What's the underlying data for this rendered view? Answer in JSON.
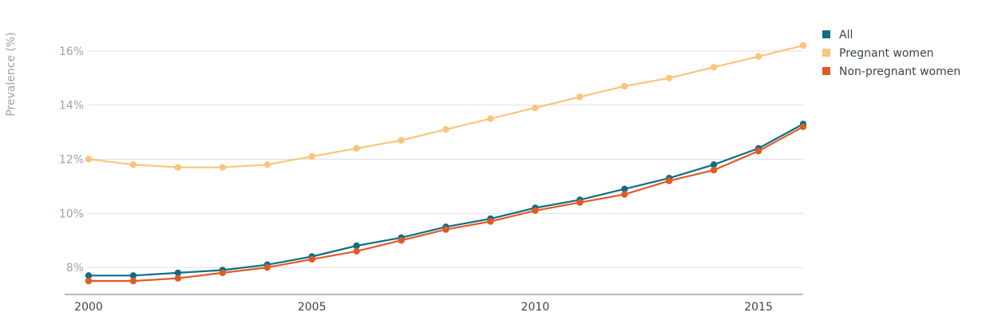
{
  "chart_data": {
    "type": "line",
    "ylabel": "Prevalence (%)",
    "xlim": [
      2000,
      2016
    ],
    "ylim": [
      7,
      17
    ],
    "x_ticks": [
      2000,
      2005,
      2010,
      2015
    ],
    "x_tick_labels": [
      "2000",
      "2005",
      "2010",
      "2015"
    ],
    "y_ticks": [
      8,
      10,
      12,
      14,
      16
    ],
    "y_tick_labels": [
      "8%",
      "10%",
      "12%",
      "14%",
      "16%"
    ],
    "grid": true,
    "legend_position": "top-right",
    "x": [
      2000,
      2001,
      2002,
      2003,
      2004,
      2005,
      2006,
      2007,
      2008,
      2009,
      2010,
      2011,
      2012,
      2013,
      2014,
      2015,
      2016
    ],
    "series": [
      {
        "name": "All",
        "color": "#0f6e85",
        "values": [
          7.7,
          7.7,
          7.8,
          7.9,
          8.1,
          8.4,
          8.8,
          9.1,
          9.5,
          9.8,
          10.2,
          10.5,
          10.9,
          11.3,
          11.8,
          12.4,
          13.3
        ]
      },
      {
        "name": "Pregnant women",
        "color": "#fbc47c",
        "values": [
          12.0,
          11.8,
          11.7,
          11.7,
          11.8,
          12.1,
          12.4,
          12.7,
          13.1,
          13.5,
          13.9,
          14.3,
          14.7,
          15.0,
          15.4,
          15.8,
          16.2
        ]
      },
      {
        "name": "Non-pregnant women",
        "color": "#e05a26",
        "values": [
          7.5,
          7.5,
          7.6,
          7.8,
          8.0,
          8.3,
          8.6,
          9.0,
          9.4,
          9.7,
          10.1,
          10.4,
          10.7,
          11.2,
          11.6,
          12.3,
          13.2
        ]
      }
    ]
  }
}
